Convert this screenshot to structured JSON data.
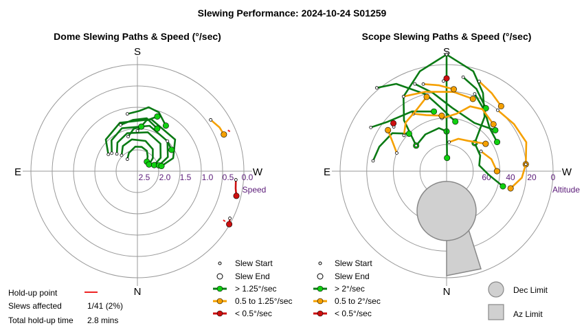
{
  "title": "Slewing Performance: 2024-10-24 S01259",
  "colors": {
    "fast": "#10d010",
    "fast_line": "#0a7a14",
    "mid": "#f5a000",
    "mid_line": "#f5a000",
    "slow": "#cc1010",
    "slow_line": "#cc1010",
    "holdup": "#ee2222",
    "ring": "#999999",
    "tick": "#5a1a78",
    "limit_fill": "#d0d0d0",
    "limit_stroke": "#888888"
  },
  "chart_data": [
    {
      "type": "polar",
      "title": "Dome Slewing Paths & Speed (°/sec)",
      "compass": {
        "top": "S",
        "bottom": "N",
        "left": "E",
        "right": "W"
      },
      "radial_label": "Speed",
      "radial_ticks": [
        "2.5",
        "2.0",
        "1.5",
        "1.0",
        "0.5",
        "0.0"
      ],
      "radial_range": [
        2.5,
        0.0
      ],
      "legend": {
        "start": "Slew Start",
        "end": "Slew End",
        "fast": "> 1.25°/sec",
        "mid": "0.5 to 1.25°/sec",
        "slow": "< 0.5°/sec"
      },
      "paths": [
        {
          "cat": "fast",
          "pts": [
            [
              140,
              2.15
            ],
            [
              155,
              2.05
            ],
            [
              175,
              1.95
            ],
            [
              190,
              1.95
            ],
            [
              205,
              2.0
            ],
            [
              215,
              2.1
            ],
            [
              225,
              2.2
            ]
          ]
        },
        {
          "cat": "fast",
          "pts": [
            [
              135,
              2.0
            ],
            [
              150,
              1.85
            ],
            [
              170,
              1.78
            ],
            [
              195,
              1.8
            ],
            [
              215,
              1.9
            ],
            [
              230,
              2.05
            ],
            [
              240,
              2.2
            ]
          ]
        },
        {
          "cat": "fast",
          "pts": [
            [
              130,
              1.9
            ],
            [
              145,
              1.72
            ],
            [
              165,
              1.62
            ],
            [
              195,
              1.6
            ],
            [
              220,
              1.7
            ],
            [
              240,
              1.9
            ],
            [
              250,
              2.1
            ]
          ]
        },
        {
          "cat": "fast",
          "pts": [
            [
              125,
              1.8
            ],
            [
              140,
              1.6
            ],
            [
              160,
              1.48
            ],
            [
              195,
              1.45
            ],
            [
              225,
              1.55
            ],
            [
              245,
              1.75
            ],
            [
              255,
              2.0
            ]
          ]
        },
        {
          "cat": "fast",
          "pts": [
            [
              120,
              1.75
            ],
            [
              135,
              1.5
            ],
            [
              160,
              1.35
            ],
            [
              195,
              1.3
            ],
            [
              230,
              1.4
            ],
            [
              250,
              1.65
            ],
            [
              258,
              1.95
            ]
          ]
        },
        {
          "cat": "fast",
          "pts": [
            [
              170,
              1.2
            ],
            [
              182,
              1.15
            ],
            [
              190,
              1.05
            ],
            [
              200,
              1.1
            ],
            [
              212,
              1.3
            ]
          ]
        },
        {
          "cat": "fast",
          "pts": [
            [
              160,
              1.4
            ],
            [
              175,
              1.35
            ],
            [
              190,
              1.3
            ],
            [
              205,
              1.45
            ]
          ]
        },
        {
          "cat": "fast",
          "pts": [
            [
              180,
              1.6
            ],
            [
              190,
              1.35
            ],
            [
              200,
              1.2
            ]
          ]
        },
        {
          "cat": "fast",
          "pts": [
            [
              165,
              1.7
            ],
            [
              175,
              1.55
            ],
            [
              185,
              1.5
            ]
          ]
        },
        {
          "cat": "fast",
          "pts": [
            [
              225,
              1.55
            ],
            [
              238,
              1.6
            ]
          ]
        },
        {
          "cat": "mid",
          "pts": [
            [
              235,
              0.5
            ],
            [
              242,
              0.42
            ],
            [
              247,
              0.4
            ]
          ]
        },
        {
          "cat": "slow",
          "pts": [
            [
              275,
              0.29
            ],
            [
              278,
              0.28
            ],
            [
              280,
              0.27
            ],
            [
              284,
              0.22
            ]
          ]
        },
        {
          "cat": "slow",
          "pts": [
            [
              297,
              0.18
            ],
            [
              300,
              0.13
            ]
          ]
        }
      ],
      "holdups": [
        [
          246,
          0.0
        ],
        [
          300,
          0.0
        ]
      ]
    },
    {
      "type": "polar",
      "title": "Scope Slewing Paths & Speed (°/sec)",
      "compass": {
        "top": "S",
        "bottom": "N",
        "left": "E",
        "right": "W"
      },
      "radial_label": "Altitude",
      "radial_ticks": [
        "60",
        "40",
        "20",
        "0"
      ],
      "radial_range": [
        90,
        0
      ],
      "legend": {
        "start": "Slew Start",
        "end": "Slew End",
        "fast": "> 2°/sec",
        "mid": "0.5 to 2°/sec",
        "slow": "< 0.5°/sec",
        "dec_limit": "Dec Limit",
        "az_limit": "Az Limit"
      },
      "paths": [
        {
          "cat": "fast",
          "pts": [
            [
              180,
              2
            ],
            [
              165,
              12
            ],
            [
              150,
              25
            ],
            [
              140,
              40
            ],
            [
              130,
              60
            ]
          ]
        },
        {
          "cat": "fast",
          "pts": [
            [
              180,
              2
            ],
            [
              195,
              12
            ],
            [
              205,
              25
            ],
            [
              215,
              40
            ],
            [
              225,
              60
            ]
          ]
        },
        {
          "cat": "fast",
          "pts": [
            [
              130,
              60
            ],
            [
              150,
              58
            ],
            [
              170,
              57
            ],
            [
              180,
              60
            ]
          ]
        },
        {
          "cat": "fast",
          "pts": [
            [
              180,
              2
            ],
            [
              180,
              30
            ],
            [
              180,
              55
            ],
            [
              182,
              80
            ]
          ]
        },
        {
          "cat": "fast",
          "pts": [
            [
              140,
              8
            ],
            [
              150,
              14
            ],
            [
              165,
              30
            ],
            [
              175,
              42
            ],
            [
              190,
              52
            ]
          ]
        },
        {
          "cat": "fast",
          "pts": [
            [
              160,
              20
            ],
            [
              170,
              30
            ],
            [
              185,
              42
            ],
            [
              210,
              48
            ],
            [
              230,
              42
            ]
          ]
        },
        {
          "cat": "fast",
          "pts": [
            [
              225,
              60
            ],
            [
              245,
              62
            ],
            [
              260,
              65
            ],
            [
              275,
              58
            ],
            [
              285,
              46
            ]
          ]
        },
        {
          "cat": "fast",
          "pts": [
            [
              98,
              34
            ],
            [
              110,
              36
            ],
            [
              125,
              40
            ],
            [
              135,
              50
            ]
          ]
        },
        {
          "cat": "fast",
          "pts": [
            [
              120,
              24
            ],
            [
              130,
              32
            ],
            [
              150,
              38
            ],
            [
              168,
              44
            ]
          ]
        },
        {
          "cat": "fast",
          "pts": [
            [
              200,
              28
            ],
            [
              212,
              36
            ],
            [
              225,
              44
            ],
            [
              240,
              46
            ]
          ]
        },
        {
          "cat": "fast",
          "pts": [
            [
              190,
              18
            ],
            [
              200,
              24
            ],
            [
              212,
              34
            ]
          ]
        },
        {
          "cat": "mid",
          "pts": [
            [
              175,
              50
            ],
            [
              190,
              46
            ],
            [
              200,
              38
            ],
            [
              210,
              36
            ],
            [
              225,
              40
            ]
          ]
        },
        {
          "cat": "mid",
          "pts": [
            [
              150,
              40
            ],
            [
              160,
              45
            ],
            [
              175,
              48
            ]
          ]
        },
        {
          "cat": "mid",
          "pts": [
            [
              220,
              30
            ],
            [
              235,
              28
            ],
            [
              250,
              26
            ],
            [
              265,
              30
            ]
          ]
        },
        {
          "cat": "mid",
          "pts": [
            [
              265,
              30
            ],
            [
              275,
              33
            ],
            [
              285,
              40
            ]
          ]
        },
        {
          "cat": "mid",
          "pts": [
            [
              150,
              25
            ],
            [
              165,
              28
            ],
            [
              185,
              30
            ],
            [
              200,
              32
            ]
          ]
        },
        {
          "cat": "mid",
          "pts": [
            [
              185,
              68
            ],
            [
              200,
              64
            ],
            [
              215,
              62
            ],
            [
              235,
              54
            ]
          ]
        },
        {
          "cat": "mid",
          "pts": [
            [
              240,
              60
            ],
            [
              255,
              55
            ],
            [
              270,
              52
            ]
          ]
        },
        {
          "cat": "mid",
          "pts": [
            [
              130,
              48
            ],
            [
              140,
              42
            ],
            [
              155,
              38
            ],
            [
              165,
              32
            ]
          ]
        },
        {
          "cat": "mid",
          "pts": [
            [
              165,
              22
            ],
            [
              175,
              25
            ],
            [
              185,
              28
            ]
          ]
        },
        {
          "cat": "mid",
          "pts": [
            [
              200,
              18
            ],
            [
              210,
              22
            ],
            [
              220,
              26
            ]
          ]
        },
        {
          "cat": "mid",
          "pts": [
            [
              110,
              50
            ],
            [
              118,
              44
            ],
            [
              125,
              36
            ]
          ]
        },
        {
          "cat": "slow",
          "pts": [
            [
              178,
              22
            ],
            [
              180,
              20
            ]
          ]
        },
        {
          "cat": "slow",
          "pts": [
            [
              130,
              38
            ],
            [
              132,
              36
            ]
          ]
        }
      ],
      "dec_limit_circle": {
        "az": 0,
        "alt": 60,
        "radius_deg": 22
      },
      "az_limit_wedge": {
        "az_from": 345,
        "az_to": 360,
        "alt_from": 45,
        "alt_to": 0
      }
    }
  ],
  "stats": {
    "holdup_label": "Hold-up point",
    "slews_label": "Slews affected",
    "slews_value": "1/41 (2%)",
    "total_label": "Total hold-up time",
    "total_value": "2.8 mins"
  }
}
